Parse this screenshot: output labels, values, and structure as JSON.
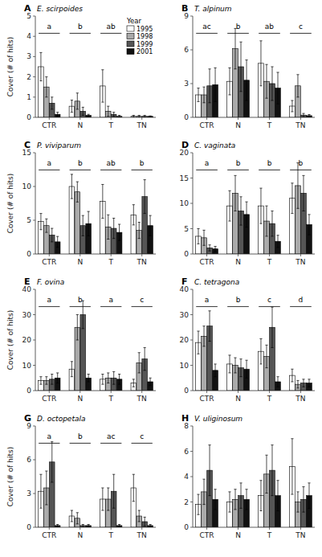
{
  "chart_data": [
    {
      "type": "bar",
      "panel_label": "A",
      "title": "E. scirpoides",
      "y_label": "Cover (# of hits)",
      "categories": [
        "CTR",
        "N",
        "T",
        "TN"
      ],
      "ylim": [
        0,
        5
      ],
      "yticks": [
        0,
        1,
        2,
        3,
        4,
        5
      ],
      "grid": false,
      "annotations": [
        "a",
        "b",
        "ab",
        null
      ],
      "legend": "upper right",
      "legend_title": "Year",
      "series": [
        {
          "name": "1995",
          "color": "white",
          "values": [
            2.5,
            0.55,
            1.55,
            0.05
          ],
          "errors": [
            0.7,
            0.3,
            0.8,
            0.05
          ]
        },
        {
          "name": "1998",
          "color": "#aaaaaa",
          "values": [
            1.5,
            0.8,
            0.3,
            0.05
          ],
          "errors": [
            0.5,
            0.4,
            0.25,
            0.05
          ]
        },
        {
          "name": "1999",
          "color": "#555555",
          "values": [
            0.7,
            0.3,
            0.15,
            0.05
          ],
          "errors": [
            0.3,
            0.2,
            0.1,
            0.05
          ]
        },
        {
          "name": "2001",
          "color": "#111111",
          "values": [
            0.15,
            0.1,
            0.05,
            0.05
          ],
          "errors": [
            0.1,
            0.05,
            0.05,
            0.02
          ]
        }
      ]
    },
    {
      "type": "bar",
      "panel_label": "B",
      "title": "T. alpinum",
      "categories": [
        "CTR",
        "N",
        "T",
        "TN"
      ],
      "ylim": [
        0,
        9
      ],
      "yticks": [
        0,
        3,
        6,
        9
      ],
      "grid": false,
      "annotations": [
        "ac",
        "b",
        "ab",
        "c"
      ],
      "series": [
        {
          "name": "1995",
          "color": "white",
          "values": [
            2.0,
            3.2,
            4.8,
            1.0
          ],
          "errors": [
            0.6,
            1.2,
            2.0,
            0.5
          ]
        },
        {
          "name": "1998",
          "color": "#aaaaaa",
          "values": [
            2.0,
            6.1,
            3.2,
            2.8
          ],
          "errors": [
            0.7,
            1.8,
            1.5,
            1.0
          ]
        },
        {
          "name": "1999",
          "color": "#555555",
          "values": [
            2.8,
            4.5,
            3.0,
            0.2
          ],
          "errors": [
            1.5,
            2.2,
            1.5,
            0.15
          ]
        },
        {
          "name": "2001",
          "color": "#111111",
          "values": [
            2.9,
            3.3,
            2.6,
            0.15
          ],
          "errors": [
            1.5,
            1.8,
            1.4,
            0.1
          ]
        }
      ]
    },
    {
      "type": "bar",
      "panel_label": "C",
      "title": "P. viviparum",
      "y_label": "Cover (# of hits)",
      "categories": [
        "CTR",
        "N",
        "T",
        "TN"
      ],
      "ylim": [
        0,
        15
      ],
      "yticks": [
        0,
        5,
        10,
        15
      ],
      "grid": false,
      "annotations": [
        "a",
        "b",
        "ab",
        "b"
      ],
      "series": [
        {
          "name": "1995",
          "color": "white",
          "values": [
            4.8,
            10.0,
            7.8,
            5.8
          ],
          "errors": [
            1.2,
            1.8,
            2.5,
            1.5
          ]
        },
        {
          "name": "1998",
          "color": "#aaaaaa",
          "values": [
            4.2,
            9.2,
            4.0,
            3.5
          ],
          "errors": [
            1.0,
            1.5,
            1.8,
            1.2
          ]
        },
        {
          "name": "1999",
          "color": "#555555",
          "values": [
            2.8,
            4.2,
            3.8,
            8.5
          ],
          "errors": [
            1.0,
            1.5,
            1.5,
            2.5
          ]
        },
        {
          "name": "2001",
          "color": "#111111",
          "values": [
            1.8,
            4.5,
            3.2,
            4.2
          ],
          "errors": [
            0.8,
            1.8,
            1.2,
            1.5
          ]
        }
      ]
    },
    {
      "type": "bar",
      "panel_label": "D",
      "title": "C. vaginata",
      "categories": [
        "CTR",
        "N",
        "T",
        "TN"
      ],
      "ylim": [
        0,
        20
      ],
      "yticks": [
        0,
        5,
        10,
        15,
        20
      ],
      "grid": false,
      "annotations": [
        "a",
        "b",
        "b",
        "b"
      ],
      "series": [
        {
          "name": "1995",
          "color": "white",
          "values": [
            3.5,
            9.5,
            9.5,
            11.0
          ],
          "errors": [
            1.5,
            3.0,
            3.5,
            3.0
          ]
        },
        {
          "name": "1998",
          "color": "#aaaaaa",
          "values": [
            3.2,
            12.0,
            6.5,
            13.5
          ],
          "errors": [
            1.5,
            3.5,
            3.0,
            4.5
          ]
        },
        {
          "name": "1999",
          "color": "#555555",
          "values": [
            1.2,
            8.5,
            6.0,
            12.0
          ],
          "errors": [
            0.6,
            2.8,
            2.5,
            3.5
          ]
        },
        {
          "name": "2001",
          "color": "#111111",
          "values": [
            1.0,
            7.8,
            2.5,
            5.8
          ],
          "errors": [
            0.5,
            2.5,
            1.2,
            2.0
          ]
        }
      ]
    },
    {
      "type": "bar",
      "panel_label": "E",
      "title": "F. ovina",
      "y_label": "Cover (# of hits)",
      "categories": [
        "CTR",
        "N",
        "T",
        "TN"
      ],
      "ylim": [
        0,
        40
      ],
      "yticks": [
        0,
        10,
        20,
        30,
        40
      ],
      "grid": false,
      "annotations": [
        "a",
        "b",
        "a",
        "c"
      ],
      "series": [
        {
          "name": "1995",
          "color": "white",
          "values": [
            4.0,
            8.5,
            4.5,
            3.0
          ],
          "errors": [
            1.5,
            3.0,
            2.0,
            1.5
          ]
        },
        {
          "name": "1998",
          "color": "#aaaaaa",
          "values": [
            4.0,
            25.0,
            5.0,
            11.0
          ],
          "errors": [
            1.5,
            5.0,
            2.0,
            4.0
          ]
        },
        {
          "name": "1999",
          "color": "#555555",
          "values": [
            4.5,
            30.0,
            5.0,
            12.5
          ],
          "errors": [
            2.0,
            5.5,
            2.5,
            4.5
          ]
        },
        {
          "name": "2001",
          "color": "#111111",
          "values": [
            5.0,
            5.0,
            4.5,
            3.5
          ],
          "errors": [
            2.0,
            1.5,
            2.0,
            1.5
          ]
        }
      ]
    },
    {
      "type": "bar",
      "panel_label": "F",
      "title": "C. tetragona",
      "categories": [
        "CTR",
        "N",
        "T",
        "TN"
      ],
      "ylim": [
        0,
        40
      ],
      "yticks": [
        0,
        10,
        20,
        30,
        40
      ],
      "grid": false,
      "annotations": [
        "a",
        "b",
        "c",
        "d"
      ],
      "series": [
        {
          "name": "1995",
          "color": "white",
          "values": [
            19.0,
            10.5,
            15.5,
            6.0
          ],
          "errors": [
            4.5,
            3.5,
            5.0,
            2.5
          ]
        },
        {
          "name": "1998",
          "color": "#aaaaaa",
          "values": [
            21.5,
            10.0,
            13.5,
            2.5
          ],
          "errors": [
            4.0,
            3.0,
            4.5,
            1.5
          ]
        },
        {
          "name": "1999",
          "color": "#555555",
          "values": [
            25.5,
            9.0,
            25.0,
            3.0
          ],
          "errors": [
            6.0,
            3.5,
            8.0,
            1.5
          ]
        },
        {
          "name": "2001",
          "color": "#111111",
          "values": [
            8.0,
            8.5,
            3.5,
            3.0
          ],
          "errors": [
            2.5,
            3.5,
            2.0,
            1.5
          ]
        }
      ]
    },
    {
      "type": "bar",
      "panel_label": "G",
      "title": "D. octopetala",
      "y_label": "Cover (# of hits)",
      "categories": [
        "CTR",
        "N",
        "T",
        "TN"
      ],
      "ylim": [
        0,
        9
      ],
      "yticks": [
        0,
        3,
        6,
        9
      ],
      "grid": false,
      "annotations": [
        "a",
        "b",
        "ac",
        "c"
      ],
      "series": [
        {
          "name": "1995",
          "color": "white",
          "values": [
            3.2,
            1.0,
            2.5,
            3.5
          ],
          "errors": [
            1.5,
            0.5,
            1.0,
            1.2
          ]
        },
        {
          "name": "1998",
          "color": "#aaaaaa",
          "values": [
            3.5,
            0.8,
            2.5,
            1.0
          ],
          "errors": [
            1.5,
            0.5,
            1.0,
            0.5
          ]
        },
        {
          "name": "1999",
          "color": "#555555",
          "values": [
            5.8,
            0.15,
            3.2,
            0.5
          ],
          "errors": [
            1.8,
            0.1,
            1.5,
            0.4
          ]
        },
        {
          "name": "2001",
          "color": "#111111",
          "values": [
            0.15,
            0.15,
            0.15,
            0.15
          ],
          "errors": [
            0.1,
            0.1,
            0.1,
            0.1
          ]
        }
      ]
    },
    {
      "type": "bar",
      "panel_label": "H",
      "title": "V. uliginosum",
      "categories": [
        "CTR",
        "N",
        "T",
        "TN"
      ],
      "ylim": [
        0,
        8
      ],
      "yticks": [
        0,
        2,
        4,
        6,
        8
      ],
      "grid": false,
      "annotations": [
        null,
        null,
        null,
        null
      ],
      "series": [
        {
          "name": "1995",
          "color": "white",
          "values": [
            1.8,
            2.0,
            2.5,
            4.8
          ],
          "errors": [
            0.8,
            0.8,
            1.2,
            2.2
          ]
        },
        {
          "name": "1998",
          "color": "#aaaaaa",
          "values": [
            2.8,
            2.2,
            4.2,
            2.0
          ],
          "errors": [
            1.0,
            0.8,
            1.5,
            0.8
          ]
        },
        {
          "name": "1999",
          "color": "#555555",
          "values": [
            4.5,
            2.5,
            4.5,
            2.2
          ],
          "errors": [
            2.0,
            1.0,
            2.0,
            1.0
          ]
        },
        {
          "name": "2001",
          "color": "#111111",
          "values": [
            2.2,
            2.2,
            2.5,
            2.5
          ],
          "errors": [
            0.8,
            0.8,
            1.2,
            1.0
          ]
        }
      ]
    }
  ]
}
